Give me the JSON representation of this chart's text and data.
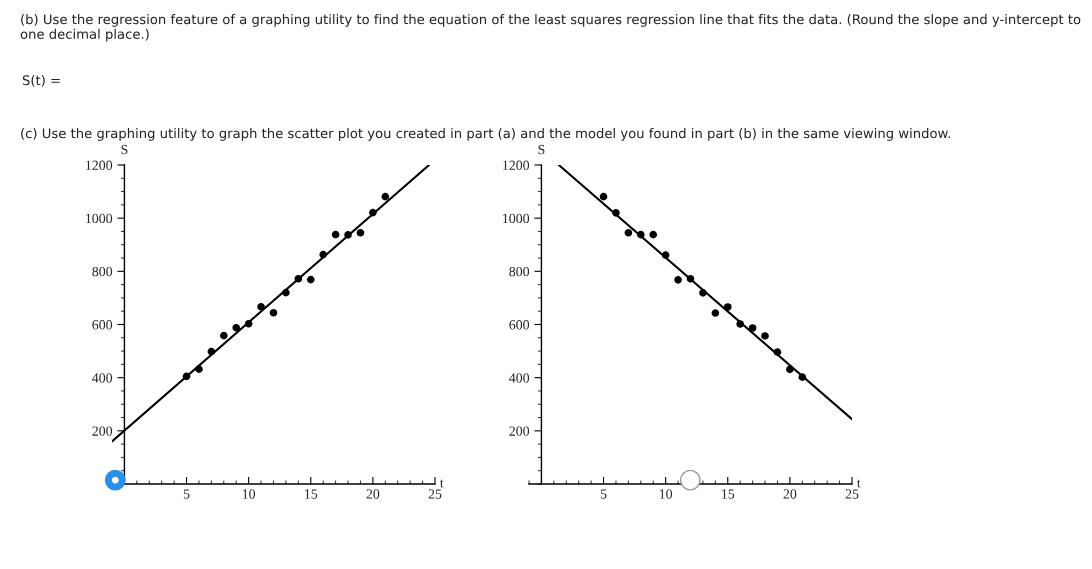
{
  "chart_data": [
    {
      "type": "scatter",
      "annotations": [
        "(b) Use the regression feature of a graphing utility to find the equation of the least squares regression line that fits the data. (Round the slope and y-intercept to one decimal place.)",
        "S(t) =",
        "(c) Use the graphing utility to graph the scatter plot you created in part (a) and the model you found in part (b) in the same viewing window."
      ],
      "xlabel": "t",
      "ylabel": "S",
      "xlim": [
        -1,
        25
      ],
      "ylim": [
        0,
        1200
      ],
      "xticks": [
        5,
        10,
        15,
        20,
        25
      ],
      "yticks": [
        200,
        400,
        600,
        800,
        1000,
        1200
      ],
      "grid": false,
      "series": [
        {
          "marker": "circle",
          "color": "#000000",
          "x": [
            5,
            6,
            7,
            8,
            9,
            10,
            11,
            12,
            13,
            14,
            15,
            16,
            17,
            18,
            19,
            20,
            21
          ],
          "values": [
            405,
            432,
            498,
            558,
            588,
            603,
            667,
            644,
            720,
            772,
            769,
            863,
            938,
            937,
            945,
            1021,
            1081
          ]
        },
        {
          "type": "line",
          "color": "#000000",
          "line_style": "solid",
          "x": [
            -1,
            24.5
          ],
          "values": [
            160,
            1199
          ]
        }
      ]
    },
    {
      "type": "scatter",
      "xlabel": "t",
      "ylabel": "S",
      "xlim": [
        -1,
        25
      ],
      "ylim": [
        0,
        1200
      ],
      "xticks": [
        5,
        10,
        15,
        20,
        25
      ],
      "yticks": [
        200,
        400,
        600,
        800,
        1000,
        1200
      ],
      "grid": false,
      "series": [
        {
          "marker": "circle",
          "color": "#000000",
          "x": [
            5,
            6,
            7,
            8,
            9,
            10,
            11,
            12,
            13,
            14,
            15,
            16,
            17,
            18,
            19,
            20,
            21
          ],
          "values": [
            1081,
            1020,
            945,
            938,
            938,
            861,
            768,
            772,
            719,
            643,
            666,
            602,
            587,
            557,
            496,
            431,
            402
          ]
        },
        {
          "type": "line",
          "color": "#000000",
          "line_style": "solid",
          "x": [
            1.4,
            25
          ],
          "values": [
            1200,
            244
          ]
        }
      ]
    }
  ]
}
